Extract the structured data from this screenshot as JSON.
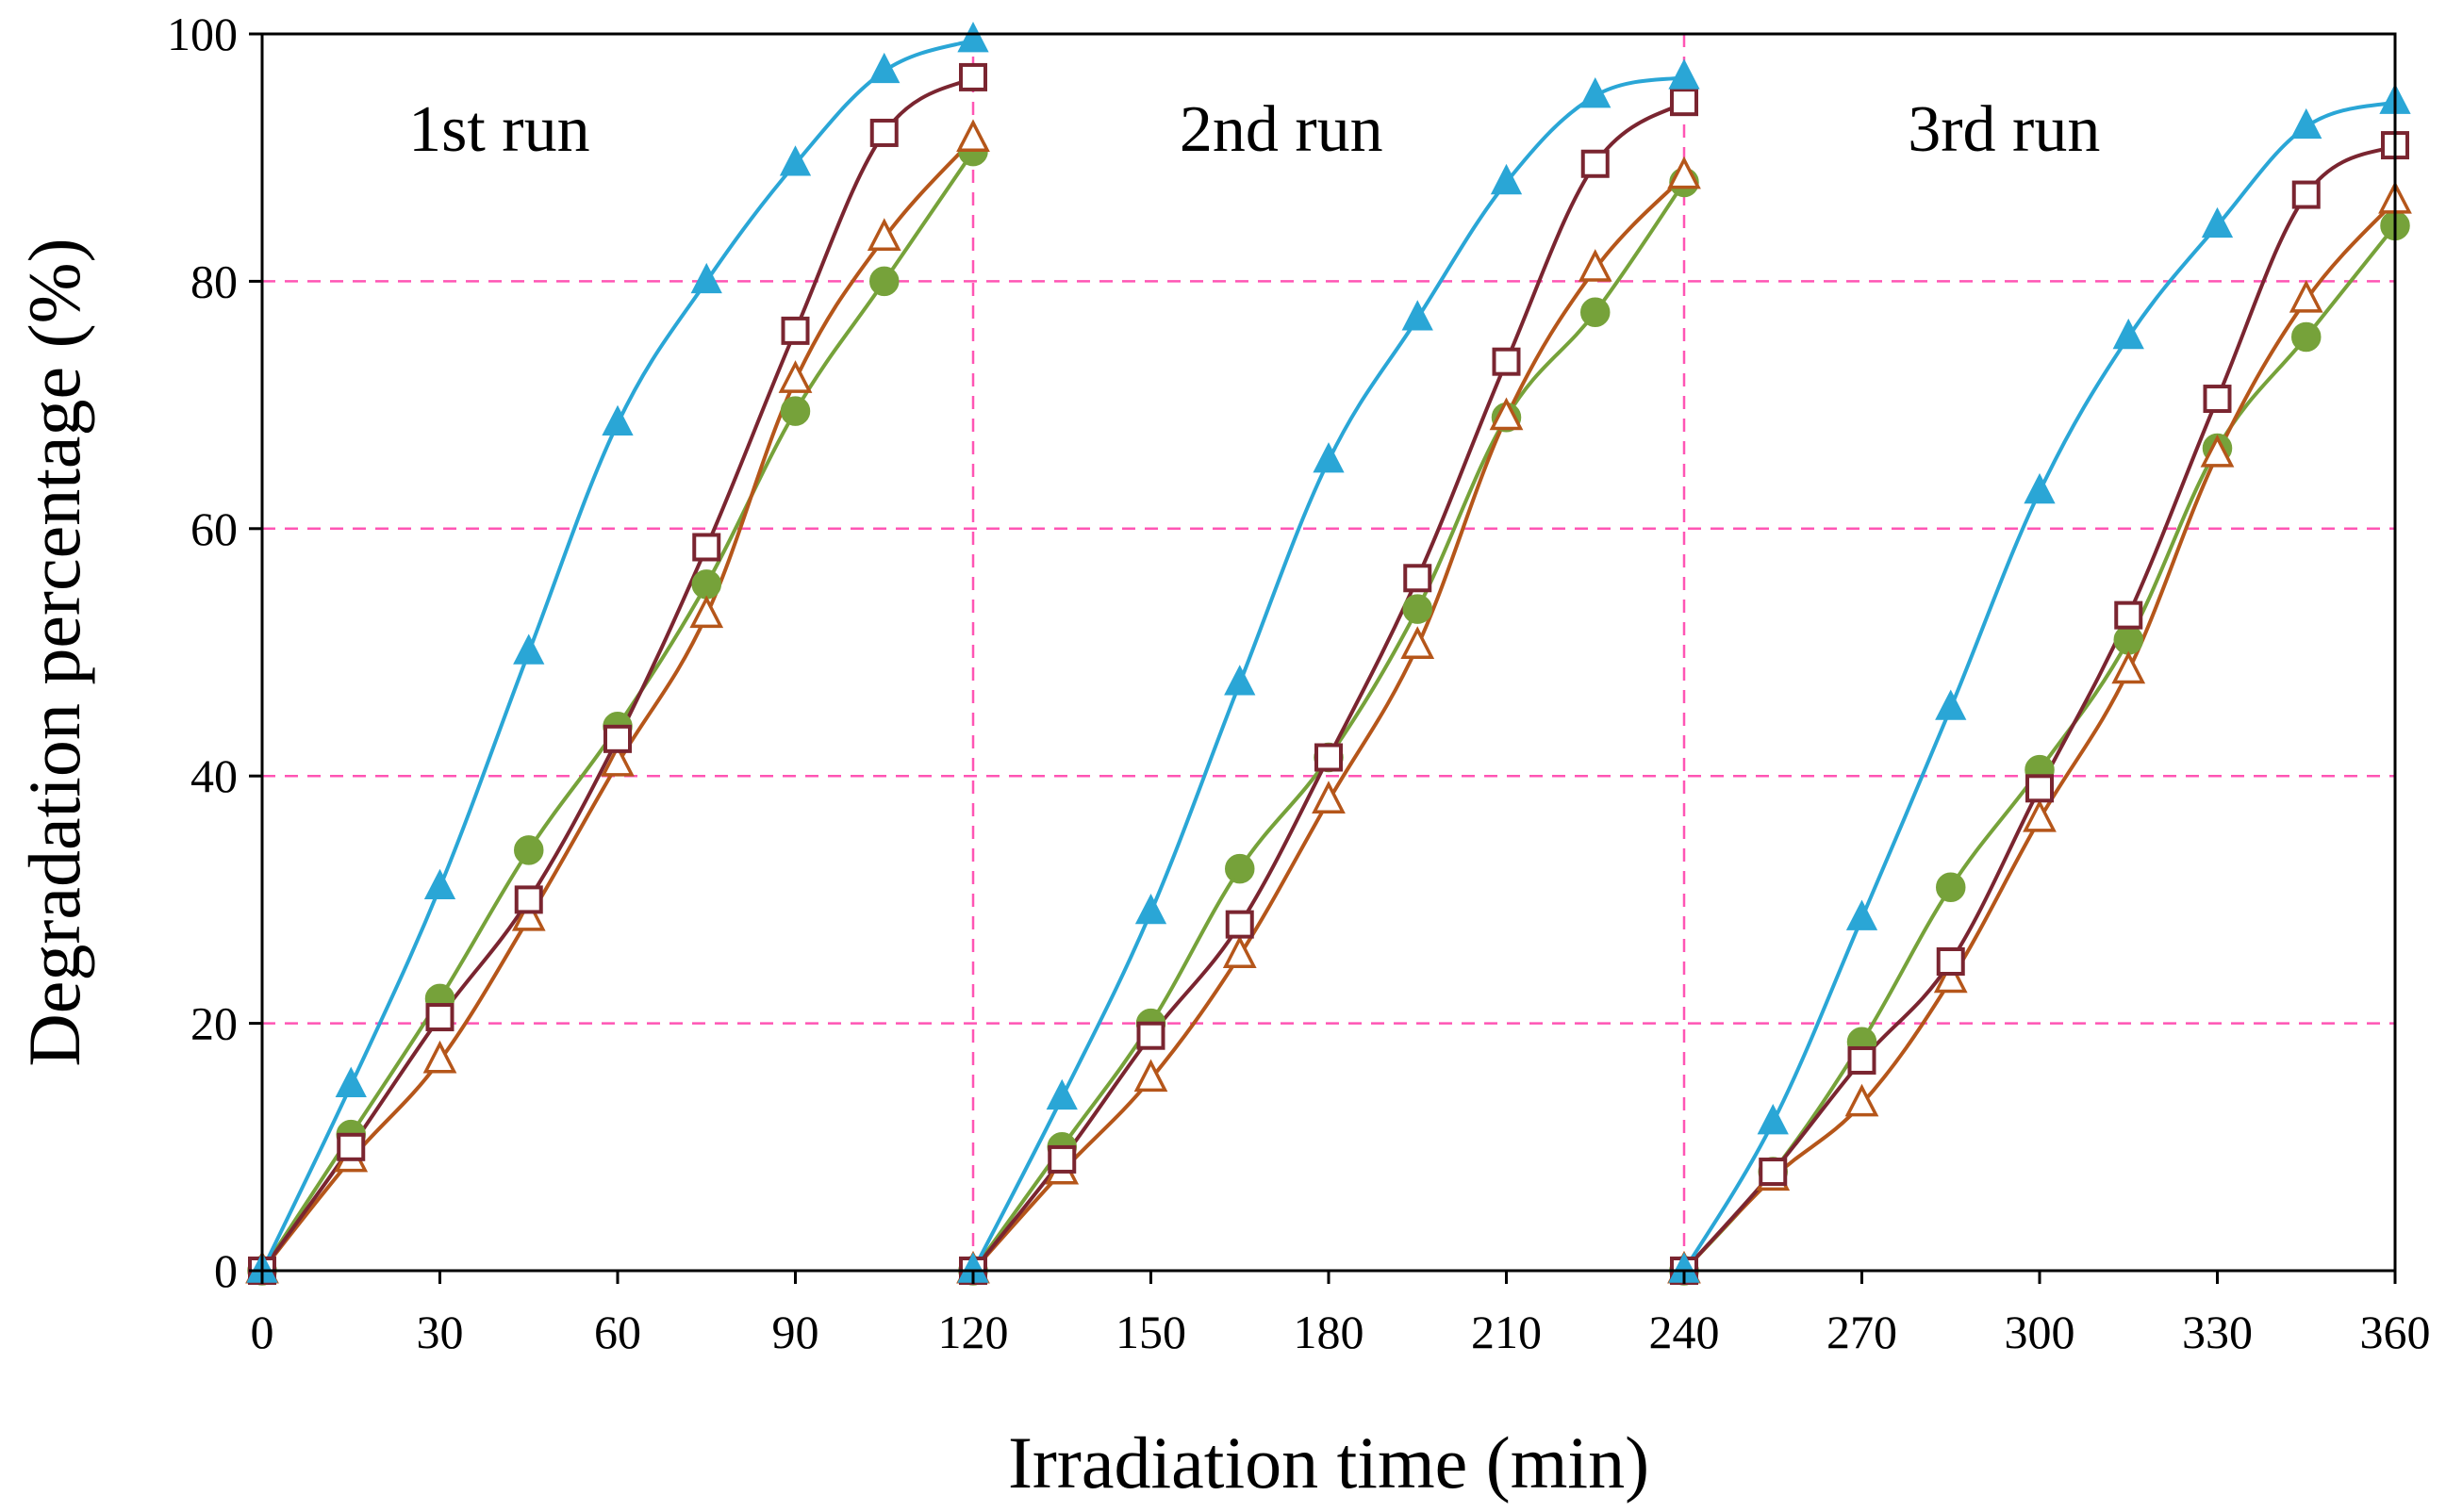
{
  "chart_data": {
    "type": "line",
    "title": "",
    "xlabel": "Irradiation time (min)",
    "ylabel": "Degradation percentage (%)",
    "xlim": [
      0,
      360
    ],
    "ylim": [
      0,
      100
    ],
    "xticks": [
      0,
      30,
      60,
      90,
      120,
      150,
      180,
      210,
      240,
      270,
      300,
      330,
      360
    ],
    "yticks": [
      0,
      20,
      40,
      60,
      80,
      100
    ],
    "grid_y": [
      20,
      40,
      60,
      80
    ],
    "run_boundaries": [
      120,
      240
    ],
    "annotations": [
      {
        "text": "1st run",
        "x": 40
      },
      {
        "text": "2nd run",
        "x": 172
      },
      {
        "text": "3rd run",
        "x": 294
      }
    ],
    "colors": {
      "grid": "#ff55b4",
      "axis": "#000000"
    },
    "runs": [
      [
        0,
        120
      ],
      [
        120,
        240
      ],
      [
        240,
        360
      ]
    ],
    "series": [
      {
        "name": "filled-triangle",
        "color": "#2aa6d6",
        "marker": "triangle",
        "filled": true,
        "x": [
          0,
          15,
          30,
          45,
          60,
          75,
          90,
          105,
          120,
          120,
          135,
          150,
          165,
          180,
          195,
          210,
          225,
          240,
          240,
          255,
          270,
          285,
          300,
          315,
          330,
          345,
          360
        ],
        "values": [
          0,
          15,
          31,
          50,
          68.5,
          80,
          89.5,
          97,
          99.5,
          0,
          14,
          29,
          47.5,
          65.5,
          77,
          88,
          95,
          96.5,
          0,
          12,
          28.5,
          45.5,
          63,
          75.5,
          84.5,
          92.5,
          94.5
        ]
      },
      {
        "name": "open-square",
        "color": "#7a2530",
        "marker": "square",
        "filled": false,
        "x": [
          0,
          15,
          30,
          45,
          60,
          75,
          90,
          105,
          120,
          120,
          135,
          150,
          165,
          180,
          195,
          210,
          225,
          240,
          240,
          255,
          270,
          285,
          300,
          315,
          330,
          345,
          360
        ],
        "values": [
          0,
          10,
          20.5,
          30,
          43,
          58.5,
          76,
          92,
          96.5,
          0,
          9,
          19,
          28,
          41.5,
          56,
          73.5,
          89.5,
          94.5,
          0,
          8,
          17,
          25,
          39,
          53,
          70.5,
          87,
          91
        ]
      },
      {
        "name": "open-triangle",
        "color": "#b5561a",
        "marker": "triangle",
        "filled": false,
        "x": [
          0,
          15,
          30,
          45,
          60,
          75,
          90,
          105,
          120,
          120,
          135,
          150,
          165,
          180,
          195,
          210,
          225,
          240,
          240,
          255,
          270,
          285,
          300,
          315,
          330,
          345,
          360
        ],
        "values": [
          0,
          9,
          17,
          28.5,
          41,
          53,
          72,
          83.5,
          91.5,
          0,
          8,
          15.5,
          25.5,
          38,
          50.5,
          69,
          81,
          88.5,
          0,
          7.5,
          13.5,
          23.5,
          36.5,
          48.5,
          66,
          78.5,
          86.5
        ]
      },
      {
        "name": "filled-circle",
        "color": "#76a23a",
        "marker": "circle",
        "filled": true,
        "x": [
          0,
          15,
          30,
          45,
          60,
          75,
          90,
          105,
          120,
          120,
          135,
          150,
          165,
          180,
          195,
          210,
          225,
          240,
          240,
          255,
          270,
          285,
          300,
          315,
          330,
          345,
          360
        ],
        "values": [
          0,
          11,
          22,
          34,
          44,
          55.5,
          69.5,
          80,
          90.5,
          0,
          10,
          20,
          32.5,
          41.5,
          53.5,
          69,
          77.5,
          88,
          0,
          8,
          18.5,
          31,
          40.5,
          51,
          66.5,
          75.5,
          84.5
        ]
      }
    ]
  }
}
